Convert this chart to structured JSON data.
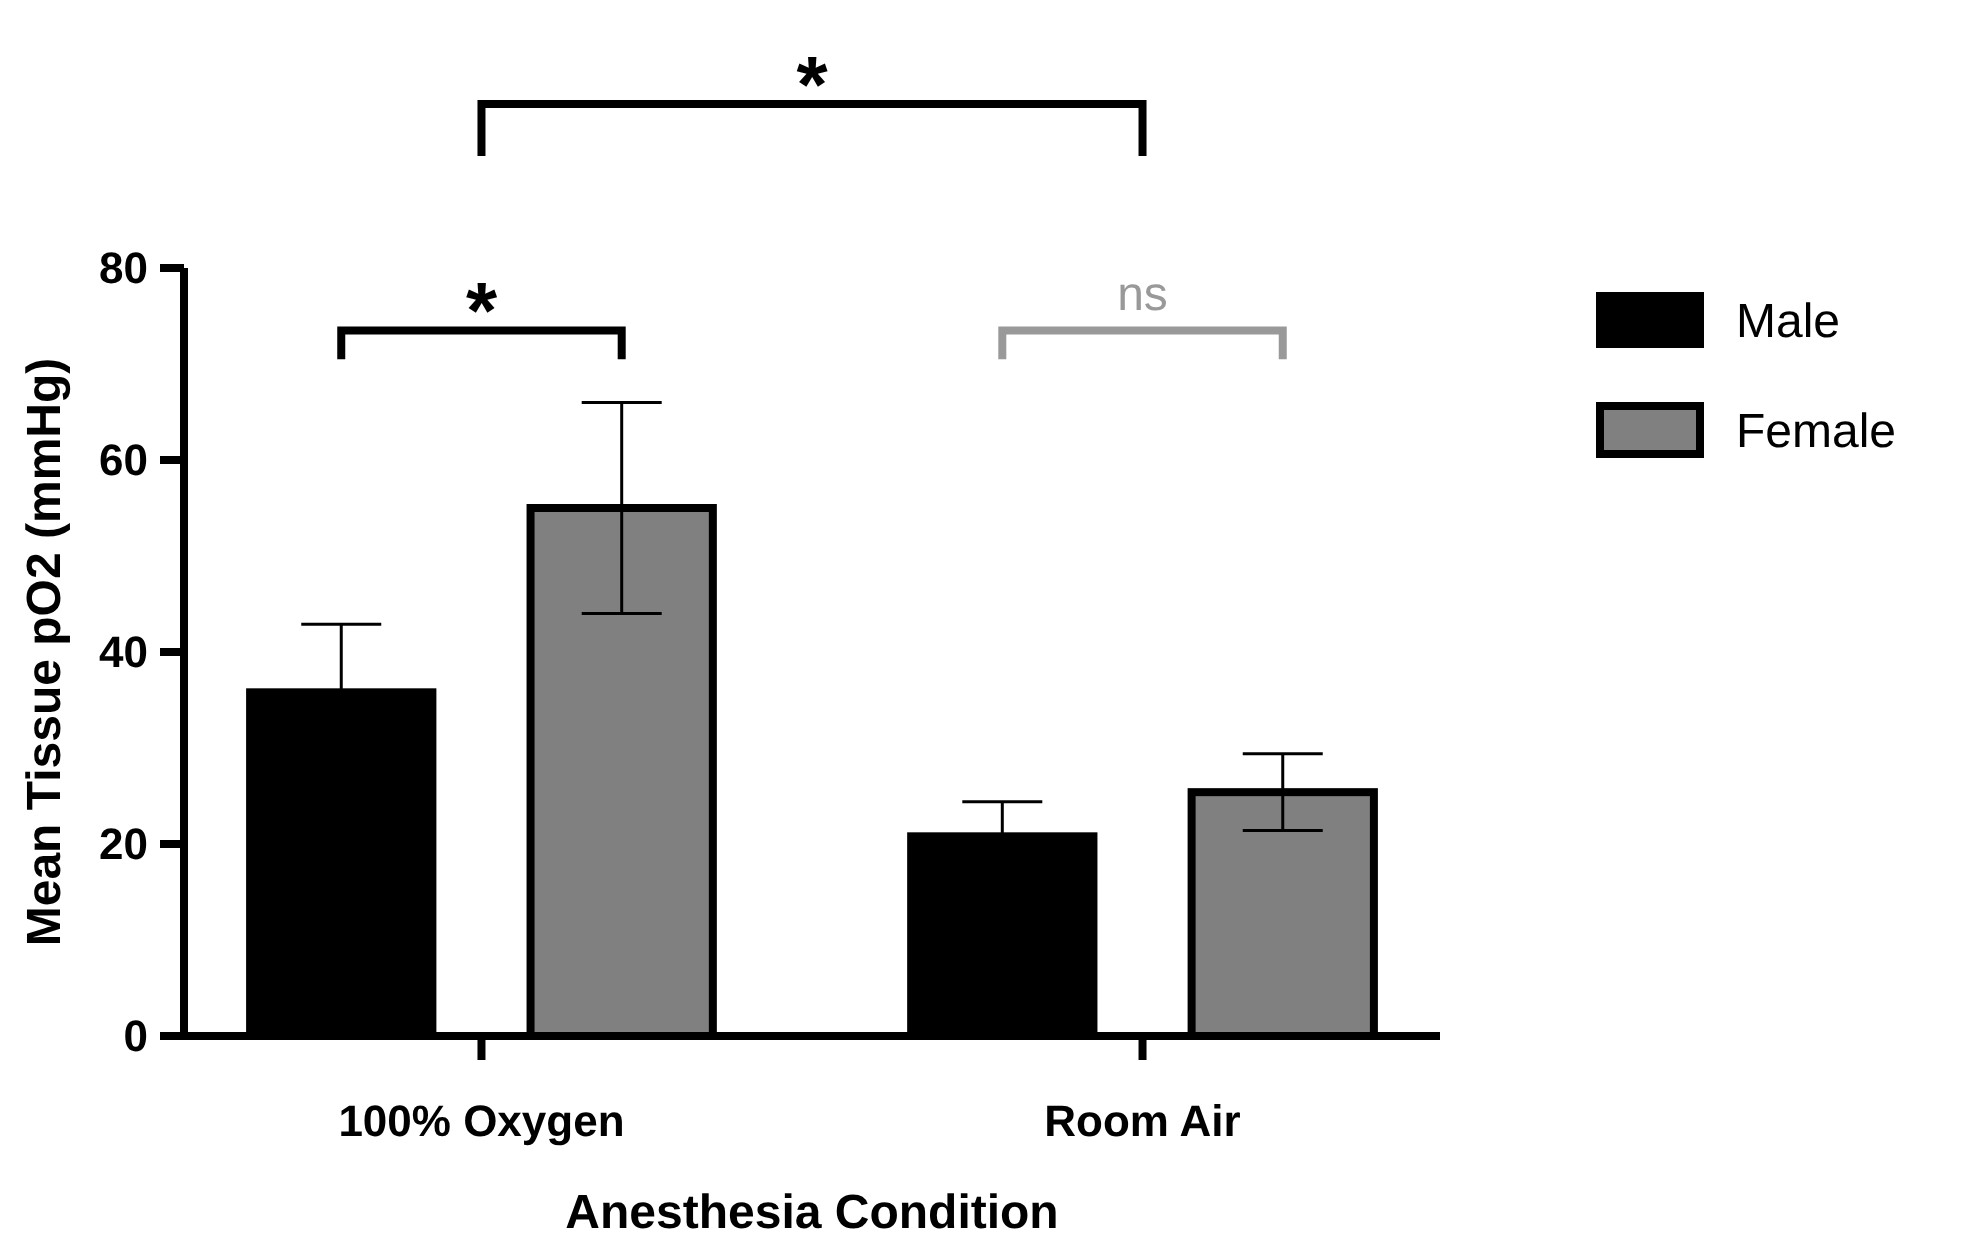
{
  "chart_data": {
    "type": "bar",
    "xlabel": "Anesthesia Condition",
    "ylabel": "Mean Tissue pO2 (mmHg)",
    "categories": [
      "100% Oxygen",
      "Room Air"
    ],
    "series": [
      {
        "name": "Male",
        "color": "#000000",
        "values": [
          35.8,
          20.8
        ],
        "errors": [
          7.1,
          3.6
        ]
      },
      {
        "name": "Female",
        "color": "#808080",
        "values": [
          55,
          25.4
        ],
        "errors": [
          11,
          4
        ]
      }
    ],
    "ylim": [
      0,
      80
    ],
    "yticks": [
      0,
      20,
      40,
      60,
      80
    ],
    "grid": false,
    "legend": "top right",
    "annotations": [
      "*",
      "*",
      "ns"
    ]
  }
}
